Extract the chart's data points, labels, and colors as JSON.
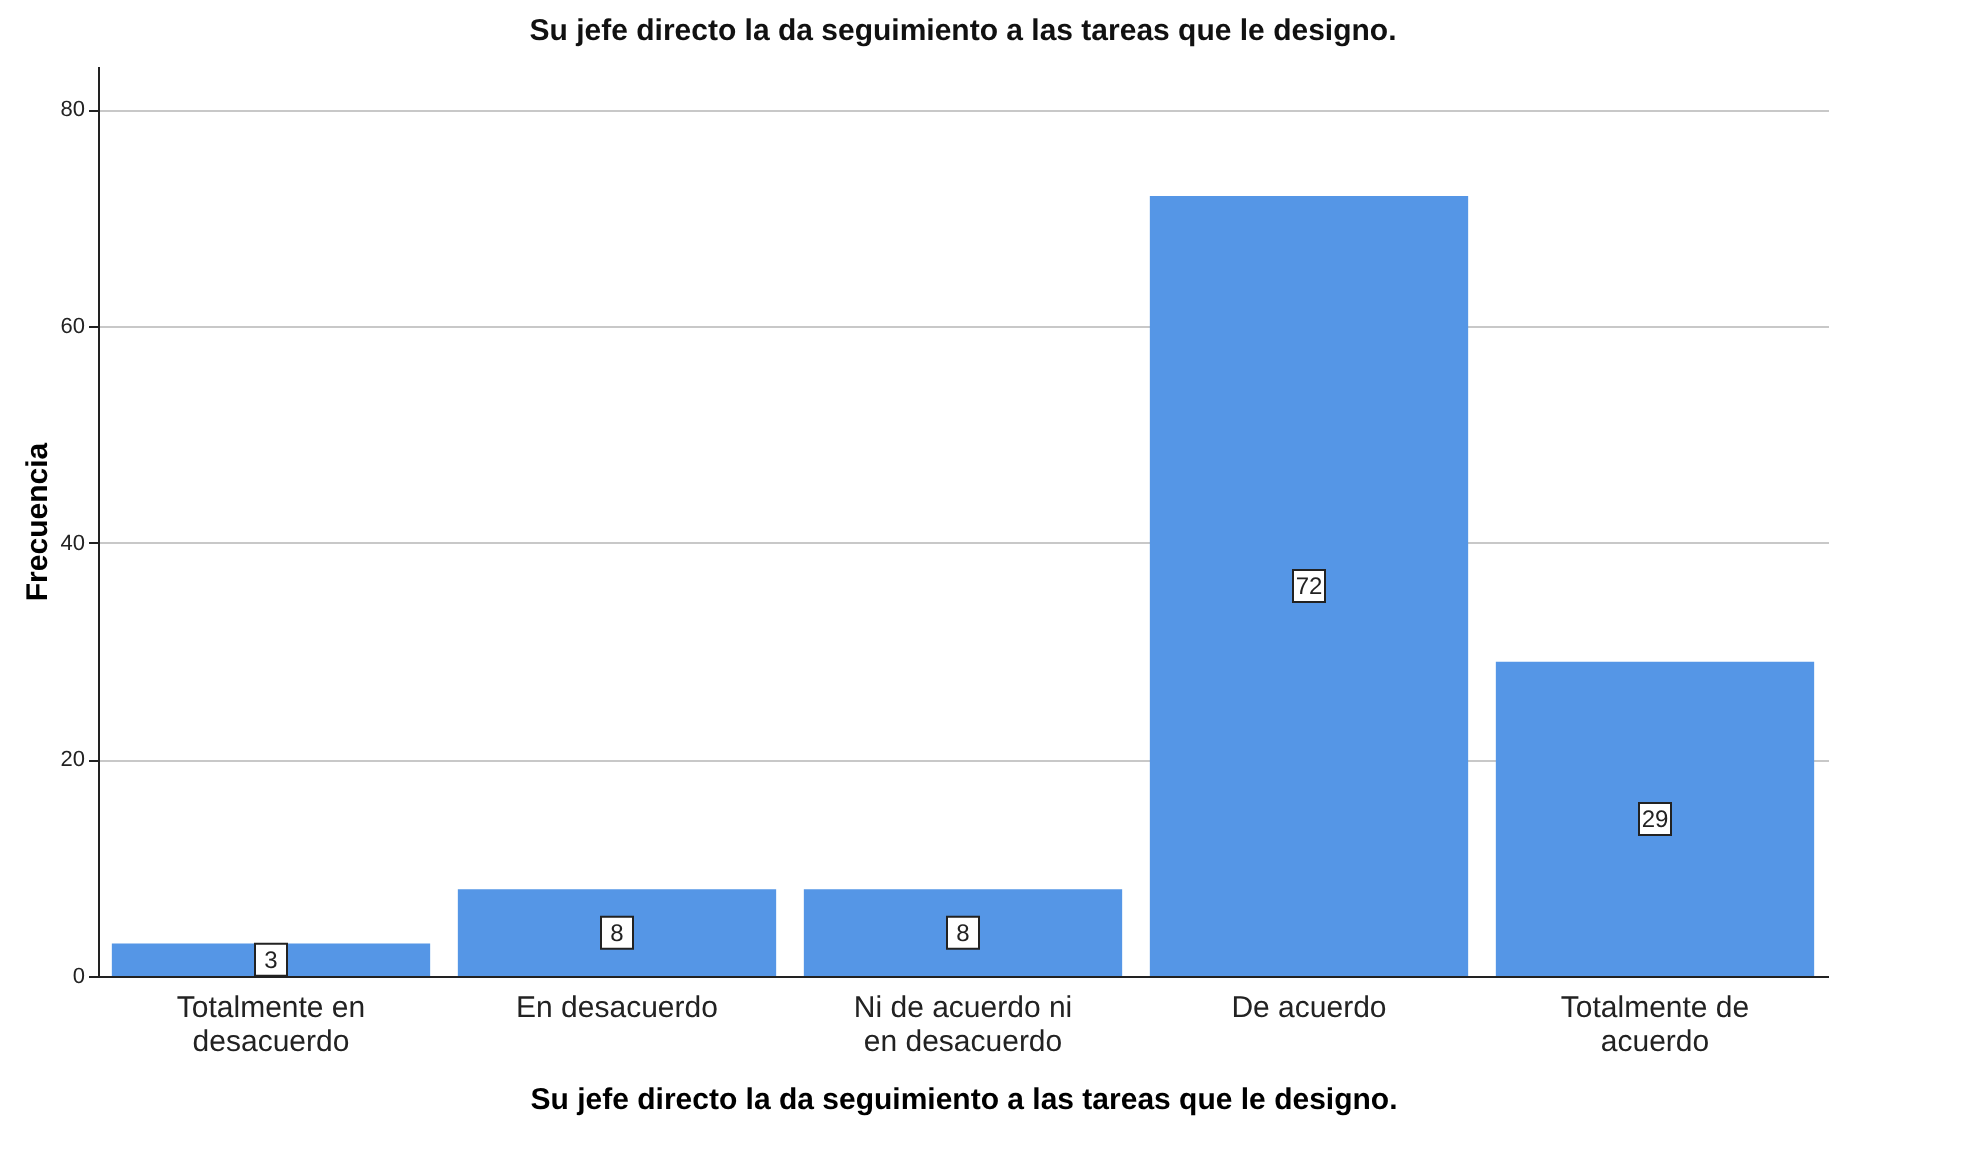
{
  "chart_data": {
    "type": "bar",
    "title": "Su jefe directo la da seguimiento a las tareas que le designo.",
    "xlabel": "Su jefe directo la da seguimiento a las tareas que le designo.",
    "ylabel": "Frecuencia",
    "categories": [
      "Totalmente en desacuerdo",
      "En desacuerdo",
      "Ni de acuerdo ni en desacuerdo",
      "De acuerdo",
      "Totalmente de acuerdo"
    ],
    "values": [
      3,
      8,
      8,
      72,
      29
    ],
    "color": "#5596e6",
    "ylim": [
      0,
      84
    ],
    "yticks": [
      0,
      20,
      40,
      60,
      80
    ],
    "grid": "y",
    "data_labels": true
  }
}
